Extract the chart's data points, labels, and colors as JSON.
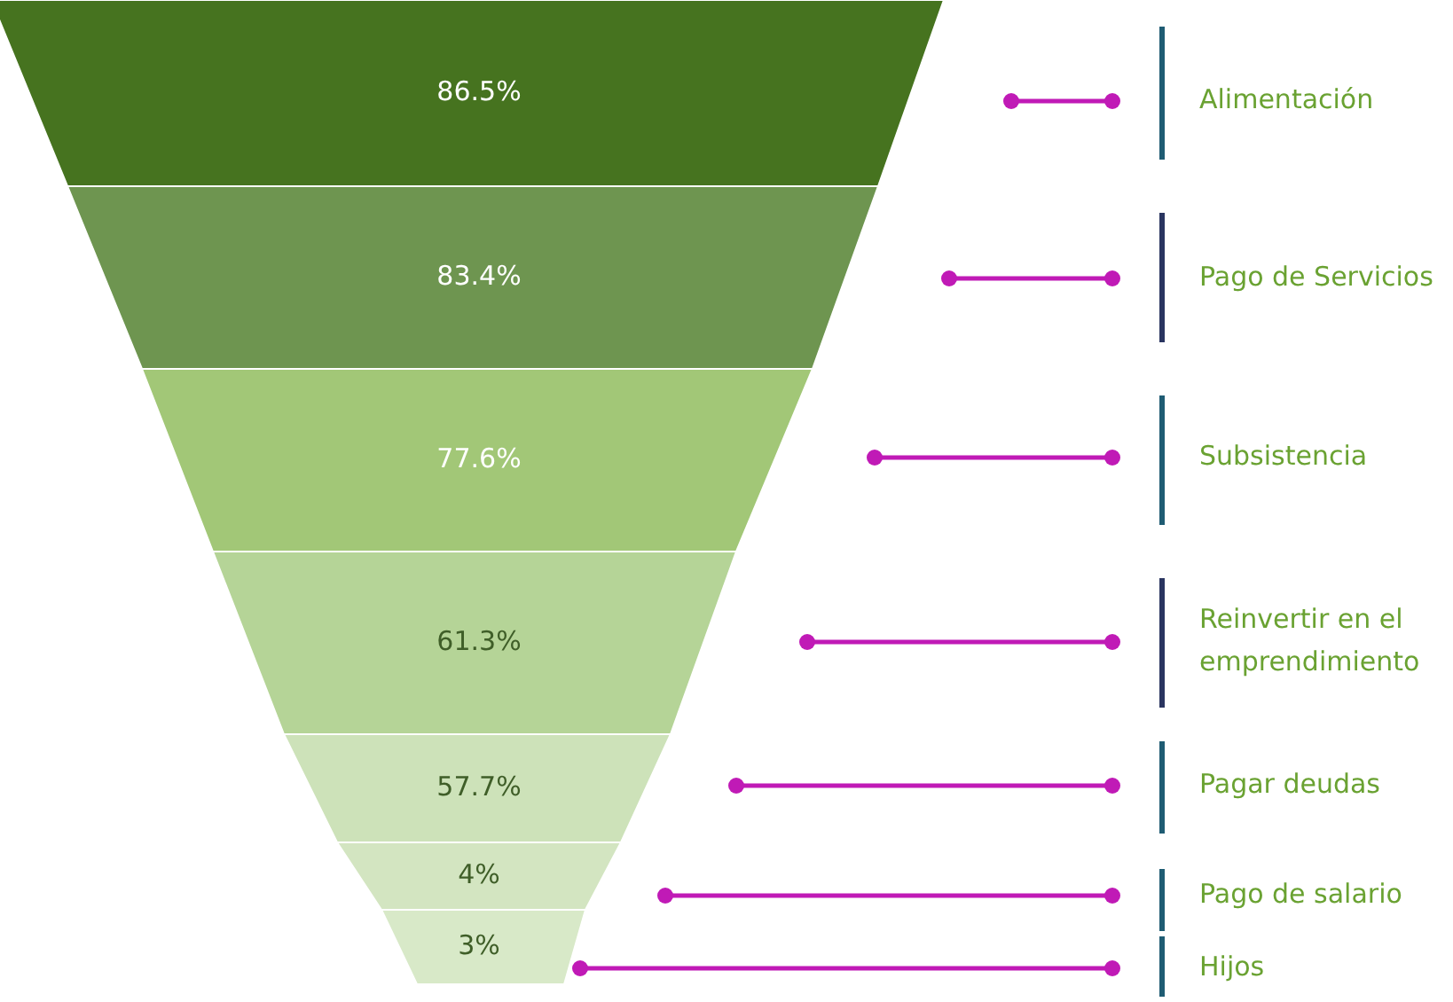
{
  "chart_data": {
    "type": "other",
    "categories": [
      "Alimentación",
      "Pago de Servicios",
      "Subsistencia",
      "Reinvertir en el emprendimiento",
      "Pagar deudas",
      "Pago de salario",
      "Hijos"
    ],
    "values": [
      86.5,
      83.4,
      77.6,
      61.3,
      57.7,
      4,
      3
    ],
    "value_labels": [
      "86.5%",
      "83.4%",
      "77.6%",
      "61.3%",
      "57.7%",
      "4%",
      "3%"
    ],
    "colors": [
      "#46731f",
      "#6e9550",
      "#a2c777",
      "#b5d497",
      "#cde2b9",
      "#d3e5c1",
      "#d8e9c8"
    ]
  }
}
